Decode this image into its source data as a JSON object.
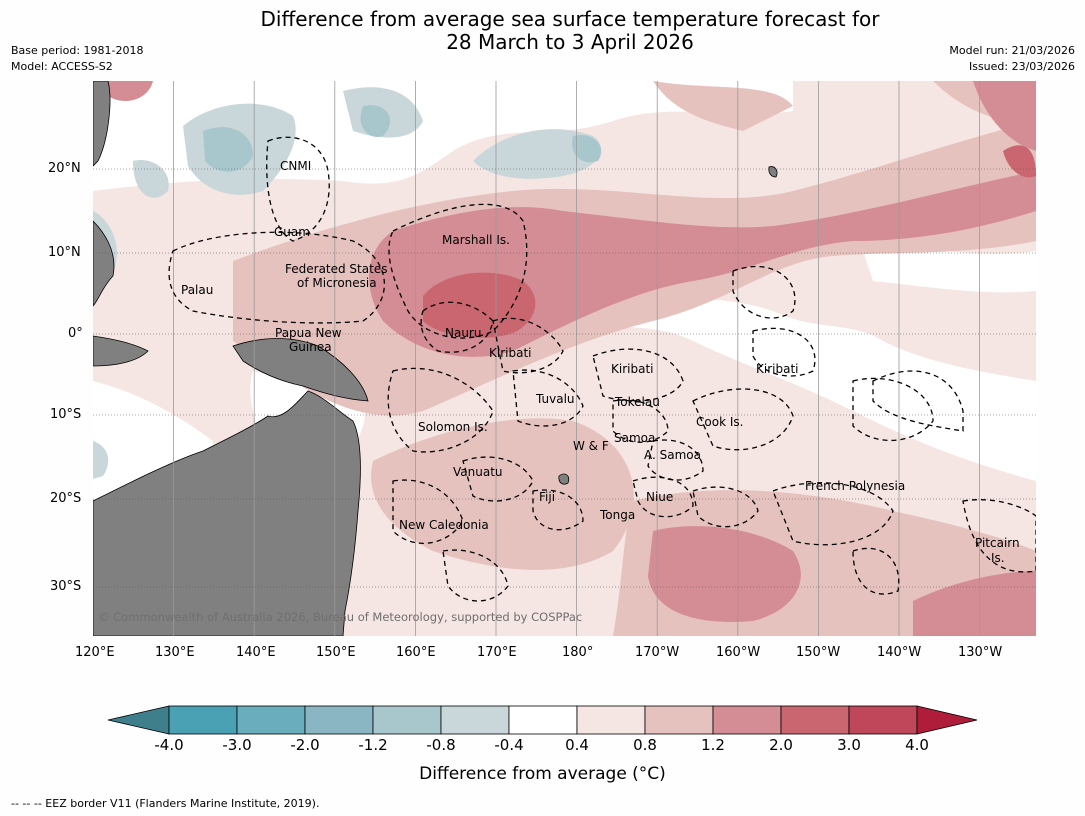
{
  "title_line1": "Difference from average sea surface temperature forecast for",
  "title_line2": "28 March to 3 April 2026",
  "meta": {
    "base_period": "Base period: 1981-2018",
    "model": "Model: ACCESS-S2",
    "model_run": "Model run: 21/03/2026",
    "issued": "Issued: 23/03/2026"
  },
  "map": {
    "lat_labels": [
      "20°N",
      "10°N",
      "0°",
      "10°S",
      "20°S",
      "30°S"
    ],
    "lon_labels": [
      "120°E",
      "130°E",
      "140°E",
      "150°E",
      "160°E",
      "170°E",
      "180°",
      "170°W",
      "160°W",
      "150°W",
      "140°W",
      "130°W"
    ],
    "regions": [
      "CNMI",
      "Guam",
      "Marshall Is.",
      "Federated States",
      "of Micronesia",
      "Palau",
      "Papua New",
      "Guinea",
      "Nauru",
      "Kiribati",
      "Kiribati",
      "Kiribati",
      "Tuvalu",
      "Tokelau",
      "Cook Is.",
      "Solomon Is.",
      "Samoa",
      "W & F",
      "A. Samoa",
      "Vanuatu",
      "Fiji",
      "Niue",
      "French Polynesia",
      "Tonga",
      "New Caledonia",
      "Pitcairn",
      "Is."
    ],
    "copyright": "© Commonwealth of Australia 2026, Bureau of Meteorology, supported by COSPPac",
    "land_color": "#808080"
  },
  "colorbar": {
    "ticks": [
      "-4.0",
      "-3.0",
      "-2.0",
      "-1.2",
      "-0.8",
      "-0.4",
      "0.4",
      "0.8",
      "1.2",
      "2.0",
      "3.0",
      "4.0"
    ],
    "colors": [
      "#3f7f8b",
      "#4aa1b4",
      "#6aadbc",
      "#8ab5c2",
      "#a8c7cc",
      "#c9d7da",
      "#ffffff",
      "#f5e5e3",
      "#e6c2bf",
      "#d48c95",
      "#c96670",
      "#c0465a",
      "#b01d3a"
    ],
    "label": "Difference from average (°C)"
  },
  "footer": "--  --  -- EEZ border V11 (Flanders Marine Institute, 2019)."
}
